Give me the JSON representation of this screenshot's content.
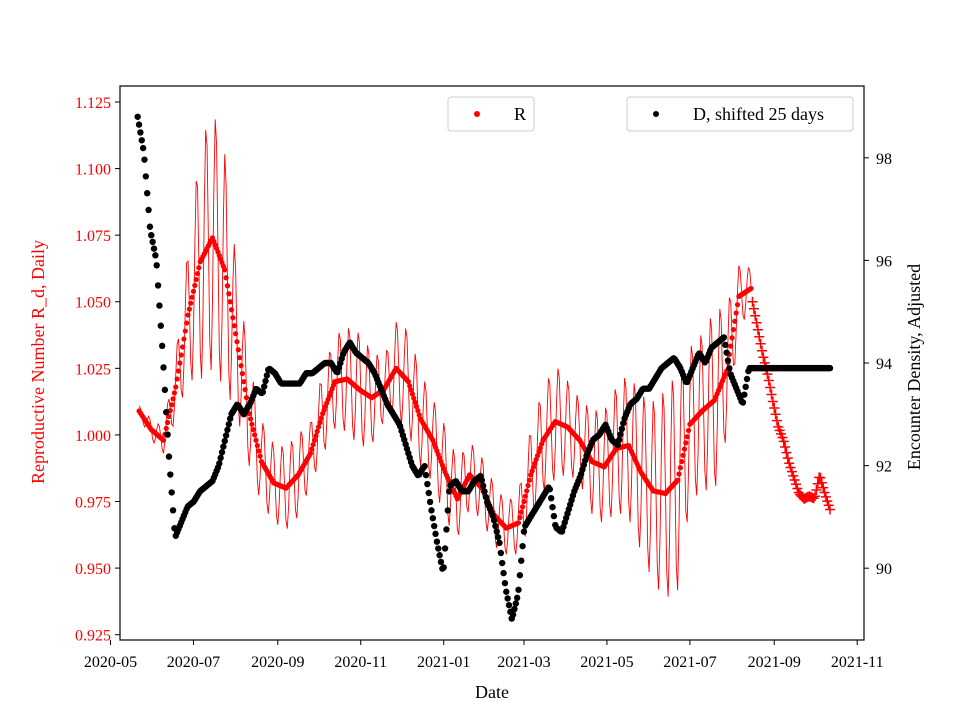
{
  "chart_data": {
    "type": "scatter",
    "title": "",
    "xlabel": "Date",
    "ylabel_left": "Reproductive Number R_d, Daily",
    "ylabel_right": "Encounter Density, Adjusted",
    "x_range": [
      "2020-05-08",
      "2021-11-06"
    ],
    "ylim_left": [
      0.923,
      1.131
    ],
    "ylim_right": [
      88.6,
      99.4
    ],
    "x_ticks": [
      {
        "date": "2020-05-01",
        "label": "2020-05"
      },
      {
        "date": "2020-07-01",
        "label": "2020-07"
      },
      {
        "date": "2020-09-01",
        "label": "2020-09"
      },
      {
        "date": "2020-11-01",
        "label": "2020-11"
      },
      {
        "date": "2021-01-01",
        "label": "2021-01"
      },
      {
        "date": "2021-03-01",
        "label": "2021-03"
      },
      {
        "date": "2021-05-01",
        "label": "2021-05"
      },
      {
        "date": "2021-07-01",
        "label": "2021-07"
      },
      {
        "date": "2021-09-01",
        "label": "2021-09"
      },
      {
        "date": "2021-11-01",
        "label": "2021-11"
      }
    ],
    "y_ticks_left": [
      "0.925",
      "0.950",
      "0.975",
      "1.000",
      "1.025",
      "1.050",
      "1.075",
      "1.100",
      "1.125"
    ],
    "y_ticks_right": [
      "90",
      "92",
      "94",
      "96",
      "98"
    ],
    "colors": {
      "R": "#ff0000",
      "D": "#000000",
      "axes": "#000000"
    },
    "legend_R": {
      "label": "R",
      "placement": "top-center"
    },
    "legend_D": {
      "label": "D, shifted 25 days",
      "placement": "top-right"
    },
    "series_R": {
      "name": "R",
      "start": "2020-05-22",
      "dot_end": "2021-08-15",
      "end": "2021-10-12",
      "dot_values": [
        1.009,
        1.002,
        0.998,
        1.018,
        1.045,
        1.065,
        1.074,
        1.062,
        1.035,
        1.008,
        0.99,
        0.982,
        0.98,
        0.985,
        0.993,
        1.008,
        1.02,
        1.021,
        1.017,
        1.014,
        1.017,
        1.025,
        1.02,
        1.006,
        0.998,
        0.986,
        0.976,
        0.985,
        0.98,
        0.97,
        0.965,
        0.967,
        0.985,
        0.998,
        1.005,
        1.003,
        0.998,
        0.99,
        0.988,
        0.995,
        0.996,
        0.986,
        0.979,
        0.978,
        0.983,
        1.004,
        1.009,
        1.013,
        1.024,
        1.052,
        1.055
      ],
      "amp_values": [
        0.002,
        0.004,
        0.005,
        0.012,
        0.025,
        0.045,
        0.05,
        0.045,
        0.028,
        0.02,
        0.016,
        0.015,
        0.016,
        0.016,
        0.012,
        0.016,
        0.018,
        0.02,
        0.022,
        0.018,
        0.012,
        0.018,
        0.02,
        0.018,
        0.016,
        0.018,
        0.015,
        0.013,
        0.012,
        0.012,
        0.01,
        0.012,
        0.018,
        0.02,
        0.022,
        0.018,
        0.016,
        0.02,
        0.022,
        0.024,
        0.028,
        0.03,
        0.035,
        0.04,
        0.042,
        0.03,
        0.03,
        0.035,
        0.025,
        0.012,
        0.008
      ],
      "plus_values": [
        1.05,
        1.04,
        1.03,
        1.022,
        1.012,
        1.003,
        0.998,
        0.99,
        0.984,
        0.978,
        0.976,
        0.977,
        0.976,
        0.985,
        0.978,
        0.972
      ],
      "legend_label": "R"
    },
    "series_D": {
      "name": "D, shifted 25 days",
      "start": "2020-05-21",
      "end": "2021-10-12",
      "values": [
        98.8,
        98.1,
        96.6,
        96,
        94.2,
        92.2,
        90.6,
        90.9,
        91.2,
        91.3,
        91.5,
        91.6,
        91.7,
        92,
        92.5,
        93.0,
        93.2,
        93.0,
        93.2,
        93.5,
        93.4,
        93.9,
        93.8,
        93.6,
        93.6,
        93.6,
        93.6,
        93.8,
        93.8,
        93.9,
        94.0,
        94.0,
        93.8,
        94.2,
        94.4,
        94.2,
        94.1,
        94.0,
        93.8,
        93.5,
        93.2,
        93.0,
        92.8,
        92.4,
        92.0,
        91.8,
        92.0,
        91.2,
        90.5,
        89.9,
        91.6,
        91.7,
        91.5,
        91.5,
        91.7,
        91.8,
        91.3,
        91.0,
        90.5,
        89.6,
        89.0,
        89.5,
        90.8,
        91.0,
        91.2,
        91.4,
        91.6,
        90.8,
        90.7,
        91.1,
        91.5,
        91.8,
        92.2,
        92.5,
        92.6,
        92.8,
        92.5,
        92.4,
        92.9,
        93.2,
        93.3,
        93.5,
        93.5,
        93.7,
        93.9,
        94.0,
        94.1,
        93.9,
        93.6,
        93.9,
        94.2,
        94.0,
        94.3,
        94.4,
        94.5,
        93.8,
        93.5,
        93.2,
        93.9,
        93.9,
        93.9,
        93.9,
        93.9,
        93.9,
        93.9,
        93.9,
        93.9,
        93.9,
        93.9,
        93.9,
        93.9,
        93.9
      ],
      "legend_label": "D, shifted 25 days"
    }
  }
}
